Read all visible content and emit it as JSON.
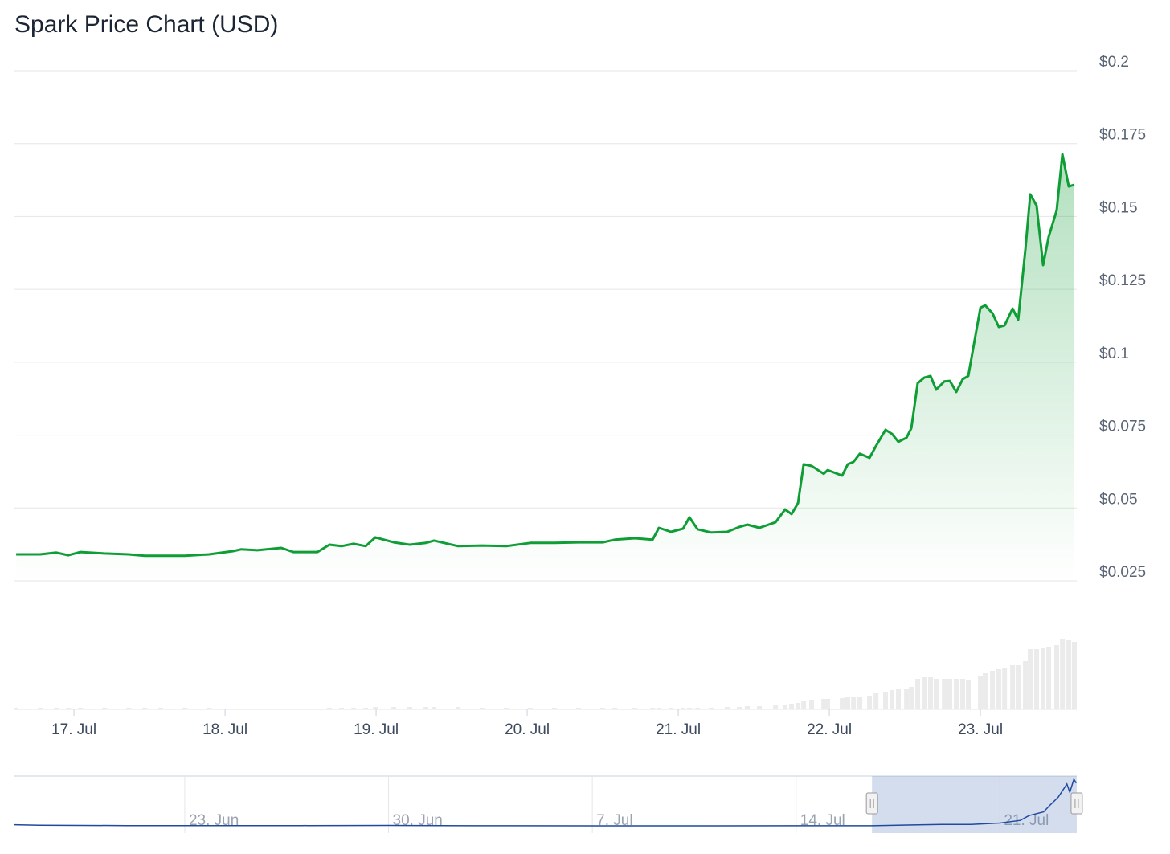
{
  "chart_data": {
    "type": "area",
    "title": "Spark Price Chart (USD)",
    "color": "#0f9d35",
    "grid": true,
    "x": [
      16.617,
      16.777,
      16.883,
      16.963,
      17.043,
      17.202,
      17.362,
      17.468,
      17.574,
      17.734,
      17.894,
      18.053,
      18.106,
      18.213,
      18.372,
      18.452,
      18.612,
      18.691,
      18.771,
      18.851,
      18.931,
      18.995,
      19.117,
      19.223,
      19.33,
      19.383,
      19.543,
      19.702,
      19.862,
      20.021,
      20.181,
      20.34,
      20.5,
      20.58,
      20.713,
      20.83,
      20.872,
      20.952,
      21.032,
      21.074,
      21.128,
      21.218,
      21.324,
      21.404,
      21.457,
      21.537,
      21.644,
      21.707,
      21.75,
      21.793,
      21.83,
      21.883,
      21.963,
      21.989,
      22.085,
      22.122,
      22.16,
      22.202,
      22.266,
      22.309,
      22.372,
      22.415,
      22.457,
      22.511,
      22.543,
      22.585,
      22.628,
      22.67,
      22.707,
      22.761,
      22.798,
      22.84,
      22.883,
      22.92,
      23.0,
      23.032,
      23.08,
      23.122,
      23.16,
      23.213,
      23.25,
      23.298,
      23.33,
      23.372,
      23.415,
      23.452,
      23.505,
      23.543,
      23.585,
      23.622
    ],
    "values": [
      0.0341,
      0.0341,
      0.0347,
      0.0338,
      0.0349,
      0.0344,
      0.0341,
      0.0336,
      0.0336,
      0.0336,
      0.0341,
      0.0352,
      0.0358,
      0.0355,
      0.0363,
      0.0349,
      0.0349,
      0.0374,
      0.0369,
      0.0377,
      0.0369,
      0.0399,
      0.0382,
      0.0374,
      0.038,
      0.0388,
      0.0369,
      0.0371,
      0.0369,
      0.038,
      0.038,
      0.0382,
      0.0382,
      0.0391,
      0.0396,
      0.0391,
      0.0432,
      0.0418,
      0.0429,
      0.0468,
      0.0427,
      0.0416,
      0.0418,
      0.0435,
      0.0443,
      0.0432,
      0.0451,
      0.0495,
      0.0479,
      0.0517,
      0.065,
      0.0644,
      0.0617,
      0.063,
      0.0611,
      0.065,
      0.0658,
      0.0686,
      0.0672,
      0.0713,
      0.0768,
      0.0754,
      0.0727,
      0.0741,
      0.0774,
      0.0928,
      0.0947,
      0.0953,
      0.0906,
      0.0934,
      0.0936,
      0.0898,
      0.0942,
      0.0953,
      0.1187,
      0.1195,
      0.1168,
      0.1121,
      0.1126,
      0.1184,
      0.1146,
      0.1388,
      0.1576,
      0.1537,
      0.1333,
      0.143,
      0.1521,
      0.1713,
      0.1603,
      0.1609
    ],
    "xlim": [
      16.606,
      23.638
    ],
    "xticks": [
      {
        "value": 17,
        "label": "17. Jul"
      },
      {
        "value": 18,
        "label": "18. Jul"
      },
      {
        "value": 19,
        "label": "19. Jul"
      },
      {
        "value": 20,
        "label": "20. Jul"
      },
      {
        "value": 21,
        "label": "21. Jul"
      },
      {
        "value": 22,
        "label": "22. Jul"
      },
      {
        "value": 23,
        "label": "23. Jul"
      }
    ],
    "ylim": [
      0.025,
      0.2
    ],
    "yticks": [
      {
        "value": 0.025,
        "label": "$0.025"
      },
      {
        "value": 0.05,
        "label": "$0.05"
      },
      {
        "value": 0.075,
        "label": "$0.075"
      },
      {
        "value": 0.1,
        "label": "$0.1"
      },
      {
        "value": 0.125,
        "label": "$0.125"
      },
      {
        "value": 0.15,
        "label": "$0.15"
      },
      {
        "value": 0.175,
        "label": "$0.175"
      },
      {
        "value": 0.2,
        "label": "$0.2"
      }
    ],
    "volume": {
      "color": "#ebebeb",
      "ylim": [
        0,
        100
      ],
      "values": [
        2,
        2,
        2,
        2,
        2,
        2,
        2,
        2,
        2,
        2,
        2,
        1,
        1,
        1,
        1,
        1,
        1,
        2,
        2,
        2,
        2,
        3,
        3,
        3,
        3,
        3,
        3,
        2,
        2,
        2,
        2,
        2,
        2,
        2,
        2,
        2,
        2,
        2,
        2,
        2,
        2,
        2,
        3,
        3,
        4,
        4,
        5,
        6,
        7,
        8,
        10,
        12,
        13,
        13,
        14,
        15,
        15,
        16,
        17,
        20,
        22,
        24,
        25,
        26,
        28,
        38,
        40,
        40,
        38,
        38,
        38,
        38,
        38,
        36,
        42,
        45,
        48,
        50,
        52,
        55,
        55,
        60,
        75,
        75,
        76,
        78,
        80,
        88,
        86,
        84
      ]
    },
    "navigator": {
      "color": "#1f4a9e",
      "xlim": [
        -12.85,
        23.64
      ],
      "xticks": [
        {
          "value": -7,
          "label": "23. Jun"
        },
        {
          "value": 0,
          "label": "30. Jun"
        },
        {
          "value": 7,
          "label": "7. Jul"
        },
        {
          "value": 14,
          "label": "14. Jul"
        },
        {
          "value": 21,
          "label": "21. Jul"
        }
      ],
      "x": [
        -12.85,
        -12,
        -9,
        -7,
        -3,
        0,
        3,
        7,
        10,
        14,
        16.6,
        18,
        19,
        20,
        21,
        21.7,
        22,
        22.5,
        22.7,
        23,
        23.3,
        23.4,
        23.54,
        23.62
      ],
      "values": [
        0.0372,
        0.0357,
        0.0345,
        0.0345,
        0.0345,
        0.035,
        0.034,
        0.0338,
        0.0338,
        0.034,
        0.034,
        0.0365,
        0.038,
        0.038,
        0.042,
        0.05,
        0.064,
        0.075,
        0.093,
        0.118,
        0.157,
        0.133,
        0.171,
        0.16
      ]
    }
  }
}
